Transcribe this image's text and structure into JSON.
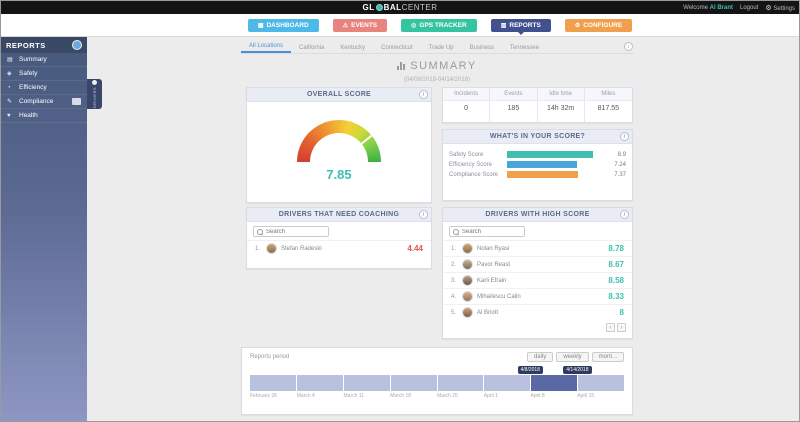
{
  "topbar": {
    "logo": {
      "prefix": "GL",
      "suffix_bold": "BAL",
      "suffix_light": "CENTER"
    },
    "welcome": "Welcome",
    "user": "Al Brant",
    "logout": "Logout",
    "settings": "Settings"
  },
  "nav": {
    "items": [
      {
        "label": "DASHBOARD",
        "icon": "dashboard-icon",
        "color": "#4cb9e8",
        "active": false
      },
      {
        "label": "EVENTS",
        "icon": "events-icon",
        "color": "#e8837d",
        "active": false
      },
      {
        "label": "GPS TRACKER",
        "icon": "gps-tracker-icon",
        "color": "#35c4a2",
        "active": false
      },
      {
        "label": "REPORTS",
        "icon": "reports-icon",
        "color": "#41518f",
        "active": true
      },
      {
        "label": "CONFIGURE",
        "icon": "configure-icon",
        "color": "#f0a04c",
        "active": false
      }
    ]
  },
  "sidebar": {
    "title": "REPORTS",
    "items": [
      {
        "label": "Summary",
        "icon": "summary-icon",
        "active": true
      },
      {
        "label": "Safety",
        "icon": "safety-icon",
        "active": false
      },
      {
        "label": "Efficiency",
        "icon": "efficiency-icon",
        "active": false
      },
      {
        "label": "Compliance",
        "icon": "compliance-icon",
        "active": false,
        "badge": true
      },
      {
        "label": "Health",
        "icon": "health-icon",
        "active": false
      }
    ],
    "flyout_label": "DRIVERS"
  },
  "tabs": {
    "items": [
      "All Locations",
      "California",
      "Kentucky",
      "Connecticut",
      "Trade Up",
      "Business",
      "Tennessee"
    ],
    "active_index": 0
  },
  "page": {
    "title": "SUMMARY",
    "subtitle": "(04/08/2018-04/14/2018)"
  },
  "overall_score": {
    "header": "OVERALL SCORE",
    "value": "7.85",
    "max": 10
  },
  "stats": {
    "columns": [
      {
        "label": "Incidents",
        "value": "0"
      },
      {
        "label": "Events",
        "value": "185"
      },
      {
        "label": "Idle time",
        "value": "14h 32m"
      },
      {
        "label": "Miles",
        "value": "817.55"
      }
    ]
  },
  "score_breakdown": {
    "header": "WHAT'S IN YOUR SCORE?",
    "rows": [
      {
        "label": "Safety Score",
        "value": 8.9,
        "display": "8.9",
        "color": "#3fbfae"
      },
      {
        "label": "Efficiency Score",
        "value": 7.24,
        "display": "7.24",
        "color": "#4aa6d8"
      },
      {
        "label": "Compliance Score",
        "value": 7.37,
        "display": "7.37",
        "color": "#f0a04c"
      }
    ]
  },
  "coaching": {
    "header": "DRIVERS THAT NEED COACHING",
    "search_placeholder": "Search",
    "score_color": "#e2574c",
    "rows": [
      {
        "rank": "1.",
        "name": "Stefan Radeski",
        "score": "4.44"
      }
    ]
  },
  "highscore": {
    "header": "DRIVERS WITH HIGH SCORE",
    "search_placeholder": "Search",
    "score_color": "#3fbfae",
    "rows": [
      {
        "rank": "1.",
        "name": "Nolan Ryasi",
        "score": "8.78"
      },
      {
        "rank": "2.",
        "name": "Pavor Reast",
        "score": "8.67"
      },
      {
        "rank": "3.",
        "name": "Karli Efrain",
        "score": "8.58"
      },
      {
        "rank": "4.",
        "name": "Mihailescu Calin",
        "score": "8.33"
      },
      {
        "rank": "5.",
        "name": "Al Briott",
        "score": "8"
      }
    ]
  },
  "period": {
    "label": "Reports period",
    "buttons": [
      "daily",
      "weekly",
      "mont..."
    ],
    "segments": 8,
    "selected_index": 6,
    "start_badge": "4/8/2018",
    "end_badge": "4/14/2018",
    "axis_labels": [
      "February 26",
      "March 4",
      "March 11",
      "March 18",
      "March 25",
      "April 1",
      "April 8",
      "April 15"
    ]
  }
}
